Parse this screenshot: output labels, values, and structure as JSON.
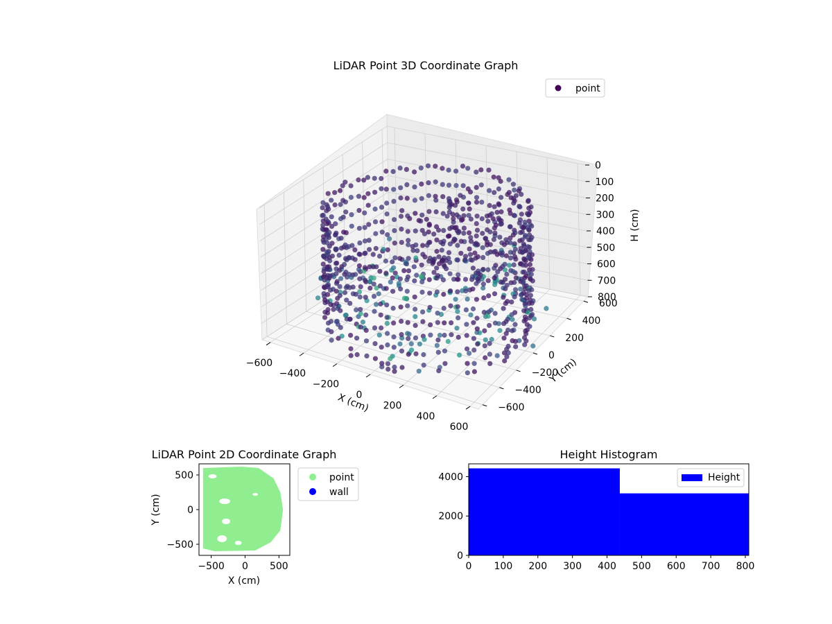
{
  "colors": {
    "point_3d_dark": "#440154",
    "point_3d_mid": "#3b528b",
    "point_3d_teal": "#21918c",
    "point_3d_light": "#5ec962",
    "point_2d": "#90ee90",
    "wall": "#0000ff",
    "histogram": "#0000ff"
  },
  "chart_data": [
    {
      "type": "scatter",
      "subtype": "3d",
      "title": "LiDAR Point 3D Coordinate Graph",
      "xlabel": "X (cm)",
      "ylabel": "Y (cm)",
      "zlabel": "H (cm)",
      "xticks": [
        "−600",
        "−400",
        "−200",
        "0",
        "200",
        "400",
        "600"
      ],
      "yticks": [
        "−600",
        "−400",
        "−200",
        "0",
        "200",
        "400",
        "600"
      ],
      "zticks": [
        "0",
        "100",
        "200",
        "300",
        "400",
        "500",
        "600",
        "700",
        "800"
      ],
      "xlim": [
        -650,
        650
      ],
      "ylim": [
        -650,
        650
      ],
      "zlim": [
        0,
        800
      ],
      "z_axis_inverted": true,
      "colormap": "viridis",
      "legend": {
        "position": "top-right",
        "entries": [
          "point"
        ]
      },
      "grid": true,
      "series": [
        {
          "name": "point",
          "description_points": [
            {
              "x": 550,
              "y": 0,
              "h": 800
            },
            {
              "x": 450,
              "y": 300,
              "h": 800
            },
            {
              "x": 250,
              "y": 500,
              "h": 800
            },
            {
              "x": 0,
              "y": 560,
              "h": 800
            },
            {
              "x": -250,
              "y": 520,
              "h": 800
            },
            {
              "x": -450,
              "y": 350,
              "h": 800
            },
            {
              "x": -550,
              "y": 100,
              "h": 800
            },
            {
              "x": -550,
              "y": -150,
              "h": 800
            },
            {
              "x": 0,
              "y": 0,
              "h": 150
            },
            {
              "x": 100,
              "y": 100,
              "h": 300
            }
          ]
        }
      ]
    },
    {
      "type": "scatter",
      "title": "LiDAR Point 2D Coordinate Graph",
      "xlabel": "X (cm)",
      "ylabel": "Y (cm)",
      "xticks": [
        "−500",
        "0",
        "500"
      ],
      "yticks": [
        "−500",
        "0",
        "500"
      ],
      "xlim": [
        -680,
        660
      ],
      "ylim": [
        -660,
        660
      ],
      "legend": {
        "position": "outside-right",
        "entries": [
          "point",
          "wall"
        ]
      },
      "series": [
        {
          "name": "point",
          "values_note": "dense filled region, x from -550 to 560, y from -580 to 600"
        },
        {
          "name": "wall",
          "values": []
        }
      ]
    },
    {
      "type": "bar",
      "subtype": "histogram",
      "title": "Height Histogram",
      "xticks": [
        "0",
        "100",
        "200",
        "300",
        "400",
        "500",
        "600",
        "700",
        "800"
      ],
      "yticks": [
        "0",
        "2000",
        "4000"
      ],
      "xlim": [
        0,
        810
      ],
      "ylim": [
        0,
        4650
      ],
      "legend": {
        "position": "top-right",
        "entries": [
          "Height"
        ]
      },
      "bins": [
        {
          "x0": 0,
          "x1": 437,
          "count": 4420
        },
        {
          "x0": 437,
          "x1": 810,
          "count": 3150
        }
      ]
    }
  ]
}
